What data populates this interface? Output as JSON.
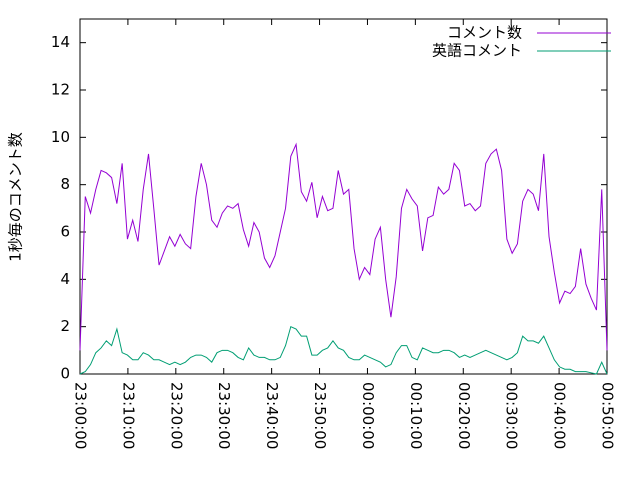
{
  "chart_data": {
    "type": "line",
    "ylabel": "1秒毎のコメント数",
    "x": [
      0,
      1.1,
      2.2,
      3.3,
      4.4,
      5.5,
      6.6,
      7.7,
      8.8,
      9.9,
      11,
      12.1,
      13.2,
      14.3,
      15.4,
      16.5,
      17.6,
      18.7,
      19.8,
      20.9,
      22,
      23.1,
      24.2,
      25.3,
      26.4,
      27.5,
      28.6,
      29.7,
      30.8,
      31.9,
      33,
      34.1,
      35.2,
      36.3,
      37.4,
      38.5,
      39.6,
      40.7,
      41.8,
      42.9,
      44,
      45.1,
      46.2,
      47.3,
      48.4,
      49.5,
      50.6,
      51.7,
      52.8,
      53.9,
      55,
      56.1,
      57.2,
      58.3,
      59.4,
      60.5,
      61.6,
      62.7,
      63.8,
      64.9,
      66,
      67.1,
      68.2,
      69.3,
      70.4,
      71.5,
      72.6,
      73.7,
      74.8,
      75.9,
      77,
      78.1,
      79.2,
      80.3,
      81.4,
      82.5,
      83.6,
      84.7,
      85.8,
      86.9,
      88,
      89.1,
      90.2,
      91.3,
      92.4,
      93.5,
      94.6,
      95.7,
      96.8,
      97.9,
      99,
      100.1,
      101.2,
      102.3,
      103.4,
      104.5,
      105.6,
      106.7,
      107.8,
      108.9,
      110
    ],
    "series": [
      {
        "name": "コメント数",
        "color": "#9400d3",
        "values": [
          1.0,
          7.5,
          6.8,
          7.8,
          8.6,
          8.5,
          8.3,
          7.2,
          8.9,
          5.7,
          6.5,
          5.6,
          7.8,
          9.3,
          7.0,
          4.6,
          5.2,
          5.8,
          5.4,
          5.9,
          5.5,
          5.3,
          7.5,
          8.9,
          8.0,
          6.5,
          6.2,
          6.8,
          7.1,
          7.0,
          7.2,
          6.1,
          5.4,
          6.4,
          6.0,
          4.9,
          4.5,
          5.0,
          6.0,
          7.0,
          9.2,
          9.7,
          7.7,
          7.3,
          8.1,
          6.6,
          7.5,
          6.9,
          7.0,
          8.6,
          7.6,
          7.8,
          5.3,
          4.0,
          4.5,
          4.2,
          5.7,
          6.2,
          4.0,
          2.4,
          4.1,
          7.0,
          7.8,
          7.4,
          7.1,
          5.2,
          6.6,
          6.7,
          7.9,
          7.6,
          7.8,
          8.9,
          8.6,
          7.1,
          7.2,
          6.9,
          7.1,
          8.9,
          9.3,
          9.5,
          8.6,
          5.7,
          5.1,
          5.5,
          7.3,
          7.8,
          7.6,
          6.9,
          9.3,
          5.8,
          4.3,
          3.0,
          3.5,
          3.4,
          3.7,
          5.3,
          3.8,
          3.2,
          2.7,
          7.8,
          1.0
        ]
      },
      {
        "name": "英語コメント",
        "color": "#009e73",
        "values": [
          0.0,
          0.1,
          0.4,
          0.9,
          1.1,
          1.4,
          1.2,
          1.9,
          0.9,
          0.8,
          0.6,
          0.6,
          0.9,
          0.8,
          0.6,
          0.6,
          0.5,
          0.4,
          0.5,
          0.4,
          0.5,
          0.7,
          0.8,
          0.8,
          0.7,
          0.5,
          0.9,
          1.0,
          1.0,
          0.9,
          0.7,
          0.6,
          1.1,
          0.8,
          0.7,
          0.7,
          0.6,
          0.6,
          0.7,
          1.2,
          2.0,
          1.9,
          1.6,
          1.6,
          0.8,
          0.8,
          1.0,
          1.1,
          1.4,
          1.1,
          1.0,
          0.7,
          0.6,
          0.6,
          0.8,
          0.7,
          0.6,
          0.5,
          0.3,
          0.4,
          0.9,
          1.2,
          1.2,
          0.7,
          0.6,
          1.1,
          1.0,
          0.9,
          0.9,
          1.0,
          1.0,
          0.9,
          0.7,
          0.8,
          0.7,
          0.8,
          0.9,
          1.0,
          0.9,
          0.8,
          0.7,
          0.6,
          0.7,
          0.9,
          1.6,
          1.4,
          1.4,
          1.3,
          1.6,
          1.1,
          0.6,
          0.3,
          0.2,
          0.2,
          0.1,
          0.1,
          0.1,
          0.05,
          0.0,
          0.5,
          0.0
        ]
      }
    ],
    "xlim": [
      0,
      110
    ],
    "xticks": [
      {
        "value": 0,
        "label": "23:00:00"
      },
      {
        "value": 10,
        "label": "23:10:00"
      },
      {
        "value": 20,
        "label": "23:20:00"
      },
      {
        "value": 30,
        "label": "23:30:00"
      },
      {
        "value": 40,
        "label": "23:40:00"
      },
      {
        "value": 50,
        "label": "23:50:00"
      },
      {
        "value": 60,
        "label": "00:00:00"
      },
      {
        "value": 70,
        "label": "00:10:00"
      },
      {
        "value": 80,
        "label": "00:20:00"
      },
      {
        "value": 90,
        "label": "00:30:00"
      },
      {
        "value": 100,
        "label": "00:40:00"
      },
      {
        "value": 110,
        "label": "00:50:00"
      }
    ],
    "ylim": [
      0,
      15
    ],
    "yticks": [
      0,
      2,
      4,
      6,
      8,
      10,
      12,
      14
    ],
    "legend": "top-right",
    "grid": false
  }
}
